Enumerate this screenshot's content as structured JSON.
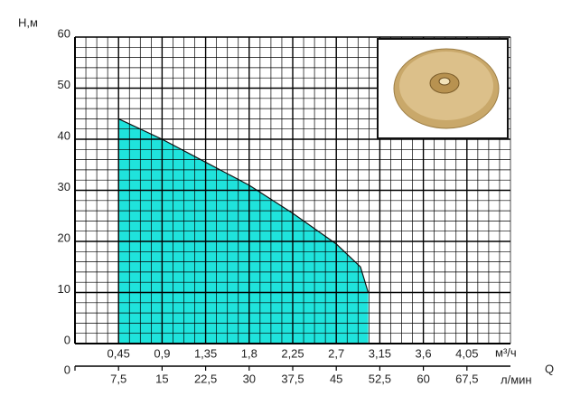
{
  "chart_data": {
    "type": "area",
    "y_label": "H,м",
    "x_label": "Q",
    "x_unit": "м³/ч",
    "x2_unit": "л/мин",
    "x": [
      0.45,
      0.9,
      1.35,
      1.8,
      2.25,
      2.7,
      2.95,
      3.03
    ],
    "values": [
      44,
      40,
      35.5,
      31,
      25.5,
      19.5,
      15,
      10
    ],
    "color": "#1fe3dc",
    "xlim": [
      0,
      4.5
    ],
    "xticks": [
      {
        "value": 0.45,
        "label": "0,45"
      },
      {
        "value": 0.9,
        "label": "0,9"
      },
      {
        "value": 1.35,
        "label": "1,35"
      },
      {
        "value": 1.8,
        "label": "1,8"
      },
      {
        "value": 2.25,
        "label": "2,25"
      },
      {
        "value": 2.7,
        "label": "2,7"
      },
      {
        "value": 3.15,
        "label": "3,15"
      },
      {
        "value": 3.6,
        "label": "3,6"
      },
      {
        "value": 4.05,
        "label": "4,05"
      }
    ],
    "x2lim": [
      0,
      75
    ],
    "x2ticks": [
      0,
      {
        "value": 7.5,
        "label": "7,5"
      },
      15,
      {
        "value": 22.5,
        "label": "22,5"
      },
      30,
      {
        "value": 37.5,
        "label": "37,5"
      },
      45,
      {
        "value": 52.5,
        "label": "52,5"
      },
      60,
      {
        "value": 67.5,
        "label": "67,5"
      }
    ],
    "ylim": [
      0,
      60
    ],
    "yticks": [
      0,
      10,
      20,
      30,
      40,
      50,
      60
    ],
    "grid": true
  }
}
